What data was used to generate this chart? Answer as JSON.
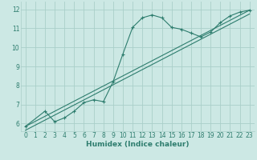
{
  "xlabel": "Humidex (Indice chaleur)",
  "bg_color": "#cce8e4",
  "line_color": "#2e7d6e",
  "grid_color": "#aacfc9",
  "xlim": [
    -0.5,
    23.5
  ],
  "ylim": [
    5.6,
    12.4
  ],
  "xticks": [
    0,
    1,
    2,
    3,
    4,
    5,
    6,
    7,
    8,
    9,
    10,
    11,
    12,
    13,
    14,
    15,
    16,
    17,
    18,
    19,
    20,
    21,
    22,
    23
  ],
  "yticks": [
    6,
    7,
    8,
    9,
    10,
    11,
    12
  ],
  "data_line": {
    "x": [
      0,
      2,
      3,
      4,
      5,
      6,
      7,
      8,
      9,
      10,
      11,
      12,
      13,
      14,
      15,
      16,
      17,
      18,
      19,
      20,
      21,
      22,
      23
    ],
    "y": [
      5.85,
      6.65,
      6.1,
      6.3,
      6.65,
      7.1,
      7.25,
      7.15,
      8.2,
      9.65,
      11.05,
      11.55,
      11.7,
      11.55,
      11.05,
      10.95,
      10.75,
      10.55,
      10.8,
      11.3,
      11.65,
      11.85,
      11.95
    ]
  },
  "reg_line1": {
    "x": [
      0,
      23
    ],
    "y": [
      5.85,
      11.95
    ]
  },
  "reg_line2": {
    "x": [
      0,
      23
    ],
    "y": [
      5.65,
      11.75
    ]
  }
}
